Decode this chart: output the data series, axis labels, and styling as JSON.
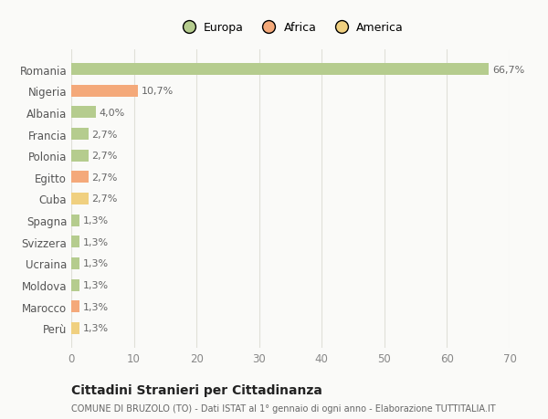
{
  "countries": [
    "Romania",
    "Nigeria",
    "Albania",
    "Francia",
    "Polonia",
    "Egitto",
    "Cuba",
    "Spagna",
    "Svizzera",
    "Ucraina",
    "Moldova",
    "Marocco",
    "Perù"
  ],
  "values": [
    66.7,
    10.7,
    4.0,
    2.7,
    2.7,
    2.7,
    2.7,
    1.3,
    1.3,
    1.3,
    1.3,
    1.3,
    1.3
  ],
  "labels": [
    "66,7%",
    "10,7%",
    "4,0%",
    "2,7%",
    "2,7%",
    "2,7%",
    "2,7%",
    "1,3%",
    "1,3%",
    "1,3%",
    "1,3%",
    "1,3%",
    "1,3%"
  ],
  "colors": [
    "#b5cc8e",
    "#f4a97a",
    "#b5cc8e",
    "#b5cc8e",
    "#b5cc8e",
    "#f4a97a",
    "#f0d080",
    "#b5cc8e",
    "#b5cc8e",
    "#b5cc8e",
    "#b5cc8e",
    "#f4a97a",
    "#f0d080"
  ],
  "legend_labels": [
    "Europa",
    "Africa",
    "America"
  ],
  "legend_colors": [
    "#b5cc8e",
    "#f4a97a",
    "#f0d080"
  ],
  "title": "Cittadini Stranieri per Cittadinanza",
  "subtitle": "COMUNE DI BRUZOLO (TO) - Dati ISTAT al 1° gennaio di ogni anno - Elaborazione TUTTITALIA.IT",
  "xlim": [
    0,
    70
  ],
  "xticks": [
    0,
    10,
    20,
    30,
    40,
    50,
    60,
    70
  ],
  "bg_color": "#fafaf8",
  "grid_color": "#e0e0d8",
  "bar_height": 0.55,
  "label_color": "#666666",
  "ytick_color": "#555555",
  "xtick_color": "#888888"
}
